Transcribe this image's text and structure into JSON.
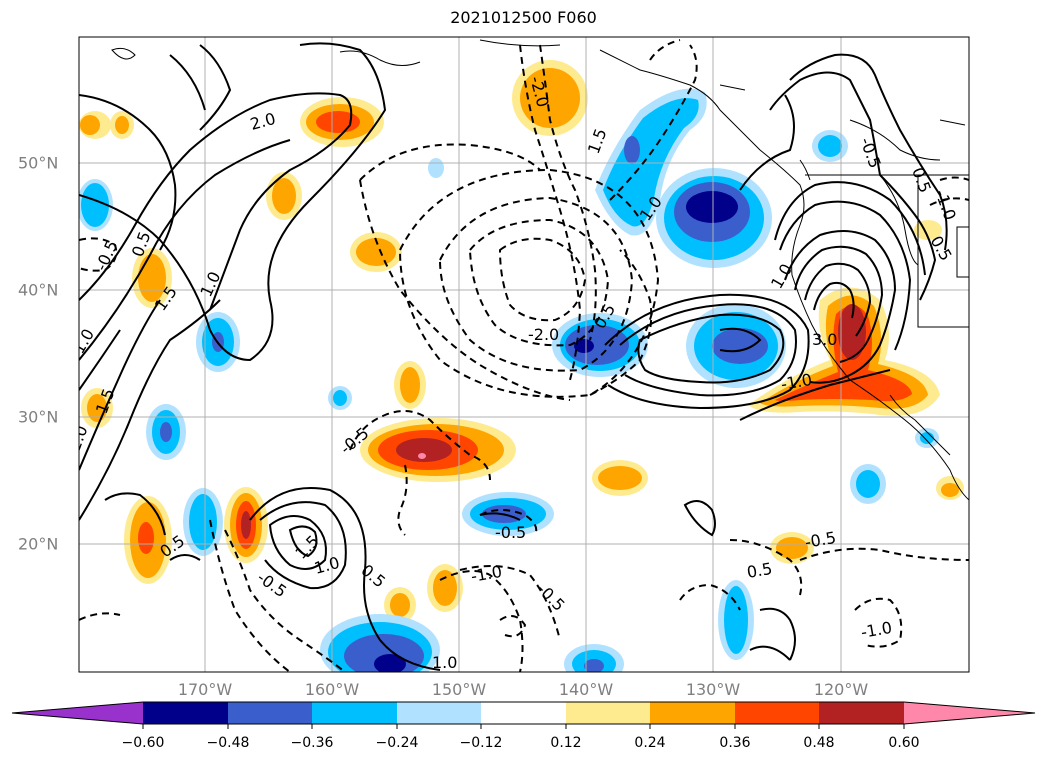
{
  "title": "2021012500 F060",
  "longitude_labels": [
    "170°W",
    "160°W",
    "150°W",
    "140°W",
    "130°W",
    "120°W"
  ],
  "latitude_labels": [
    "50°N",
    "40°N",
    "30°N",
    "20°N"
  ],
  "contour_labels": [
    "2.0",
    "-2.0",
    "1.5",
    "1.0",
    "0.5",
    "-0.5",
    "-1.0",
    "-2.0",
    "1.5",
    "1.0",
    "0.5",
    "-0.5",
    "-1.0",
    "3.0",
    "1.0",
    "-0.5",
    "0.5",
    "0.5",
    "-0.5",
    "-1.0",
    "1.5",
    "1.0",
    "-0.5",
    "-1.0",
    "1.0",
    "0.5",
    "-0.5",
    "0.5",
    "2.0",
    "1.5",
    "-0.5",
    "0.5",
    "-1.0"
  ],
  "colorbar": {
    "tick_labels": [
      "−0.60",
      "−0.48",
      "−0.36",
      "−0.24",
      "−0.12",
      "0.12",
      "0.24",
      "0.36",
      "0.48",
      "0.60"
    ],
    "colors": [
      "#9932cc",
      "#00008b",
      "#3a5fcd",
      "#00bfff",
      "#b0e2ff",
      "#ffffff",
      "#ffeb8f",
      "#ffa500",
      "#ff4500",
      "#b22222",
      "#ff88aa"
    ]
  }
}
